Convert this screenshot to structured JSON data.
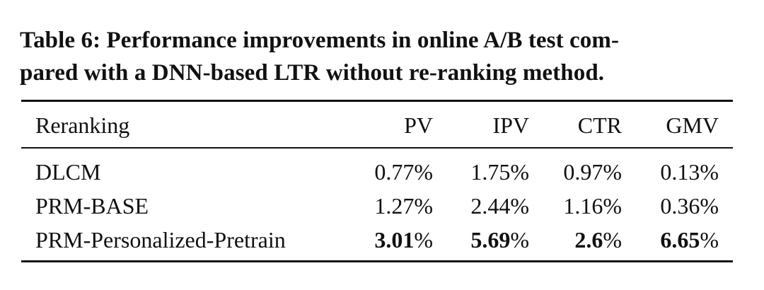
{
  "caption": {
    "line1": "Table 6: Performance improvements in online A/B test com-",
    "line2": "pared with a DNN-based LTR without re-ranking method."
  },
  "table": {
    "headers": [
      "Reranking",
      "PV",
      "IPV",
      "CTR",
      "GMV"
    ],
    "rows": [
      {
        "name": "DLCM",
        "values": [
          "0.77",
          "1.75",
          "0.97",
          "0.13"
        ],
        "bold": false
      },
      {
        "name": "PRM-BASE",
        "values": [
          "1.27",
          "2.44",
          "1.16",
          "0.36"
        ],
        "bold": false
      },
      {
        "name": "PRM-Personalized-Pretrain",
        "values": [
          "3.01",
          "5.69",
          "2.6",
          "6.65"
        ],
        "bold": true
      }
    ],
    "unit": "%"
  }
}
